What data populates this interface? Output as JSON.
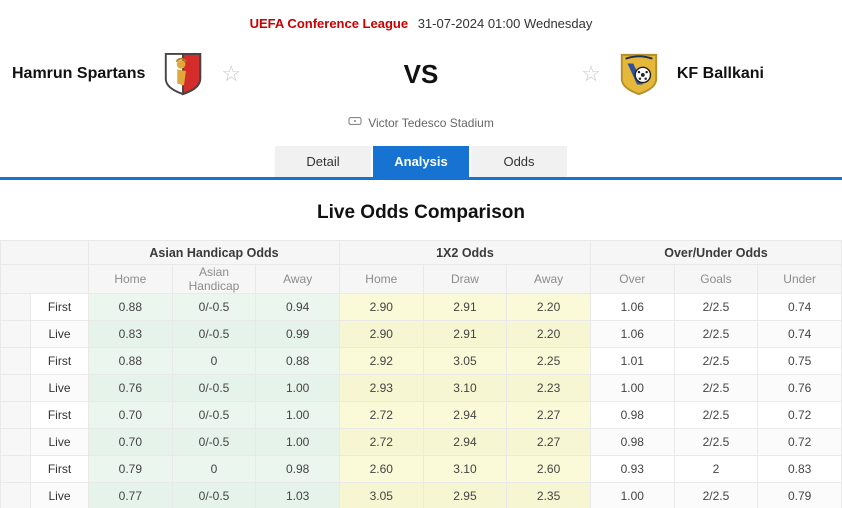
{
  "header": {
    "league": "UEFA Conference League",
    "datetime": "31-07-2024 01:00 Wednesday"
  },
  "match": {
    "home_team": "Hamrun Spartans",
    "away_team": "KF Ballkani",
    "vs_label": "VS",
    "stadium": "Victor Tedesco Stadium"
  },
  "tabs": [
    {
      "label": "Detail",
      "active": false
    },
    {
      "label": "Analysis",
      "active": true
    },
    {
      "label": "Odds",
      "active": false
    }
  ],
  "section_title": "Live Odds Comparison",
  "colors": {
    "accent_blue": "#1673d2",
    "league_red": "#c80000",
    "asian_handicap_green": "#eaf6ee",
    "x12_yellow": "#fafad8"
  },
  "icons": {
    "home_crest": "hamrun-spartans-crest",
    "away_crest": "kf-ballkani-crest",
    "favorite": "star-outline-icon",
    "venue": "stadium-icon"
  },
  "odds_table": {
    "groups": [
      "Asian Handicap Odds",
      "1X2 Odds",
      "Over/Under Odds"
    ],
    "subheaders": [
      "Home",
      "Asian Handicap",
      "Away",
      "Home",
      "Draw",
      "Away",
      "Over",
      "Goals",
      "Under"
    ],
    "rows": [
      {
        "label": "First",
        "ah": [
          "0.88",
          "0/-0.5",
          "0.94"
        ],
        "x12": [
          "2.90",
          "2.91",
          "2.20"
        ],
        "ou": [
          "1.06",
          "2/2.5",
          "0.74"
        ]
      },
      {
        "label": "Live",
        "ah": [
          "0.83",
          "0/-0.5",
          "0.99"
        ],
        "x12": [
          "2.90",
          "2.91",
          "2.20"
        ],
        "ou": [
          "1.06",
          "2/2.5",
          "0.74"
        ]
      },
      {
        "label": "First",
        "ah": [
          "0.88",
          "0",
          "0.88"
        ],
        "x12": [
          "2.92",
          "3.05",
          "2.25"
        ],
        "ou": [
          "1.01",
          "2/2.5",
          "0.75"
        ]
      },
      {
        "label": "Live",
        "ah": [
          "0.76",
          "0/-0.5",
          "1.00"
        ],
        "x12": [
          "2.93",
          "3.10",
          "2.23"
        ],
        "ou": [
          "1.00",
          "2/2.5",
          "0.76"
        ]
      },
      {
        "label": "First",
        "ah": [
          "0.70",
          "0/-0.5",
          "1.00"
        ],
        "x12": [
          "2.72",
          "2.94",
          "2.27"
        ],
        "ou": [
          "0.98",
          "2/2.5",
          "0.72"
        ]
      },
      {
        "label": "Live",
        "ah": [
          "0.70",
          "0/-0.5",
          "1.00"
        ],
        "x12": [
          "2.72",
          "2.94",
          "2.27"
        ],
        "ou": [
          "0.98",
          "2/2.5",
          "0.72"
        ]
      },
      {
        "label": "First",
        "ah": [
          "0.79",
          "0",
          "0.98"
        ],
        "x12": [
          "2.60",
          "3.10",
          "2.60"
        ],
        "ou": [
          "0.93",
          "2",
          "0.83"
        ]
      },
      {
        "label": "Live",
        "ah": [
          "0.77",
          "0/-0.5",
          "1.03"
        ],
        "x12": [
          "3.05",
          "2.95",
          "2.35"
        ],
        "ou": [
          "1.00",
          "2/2.5",
          "0.79"
        ]
      }
    ]
  }
}
